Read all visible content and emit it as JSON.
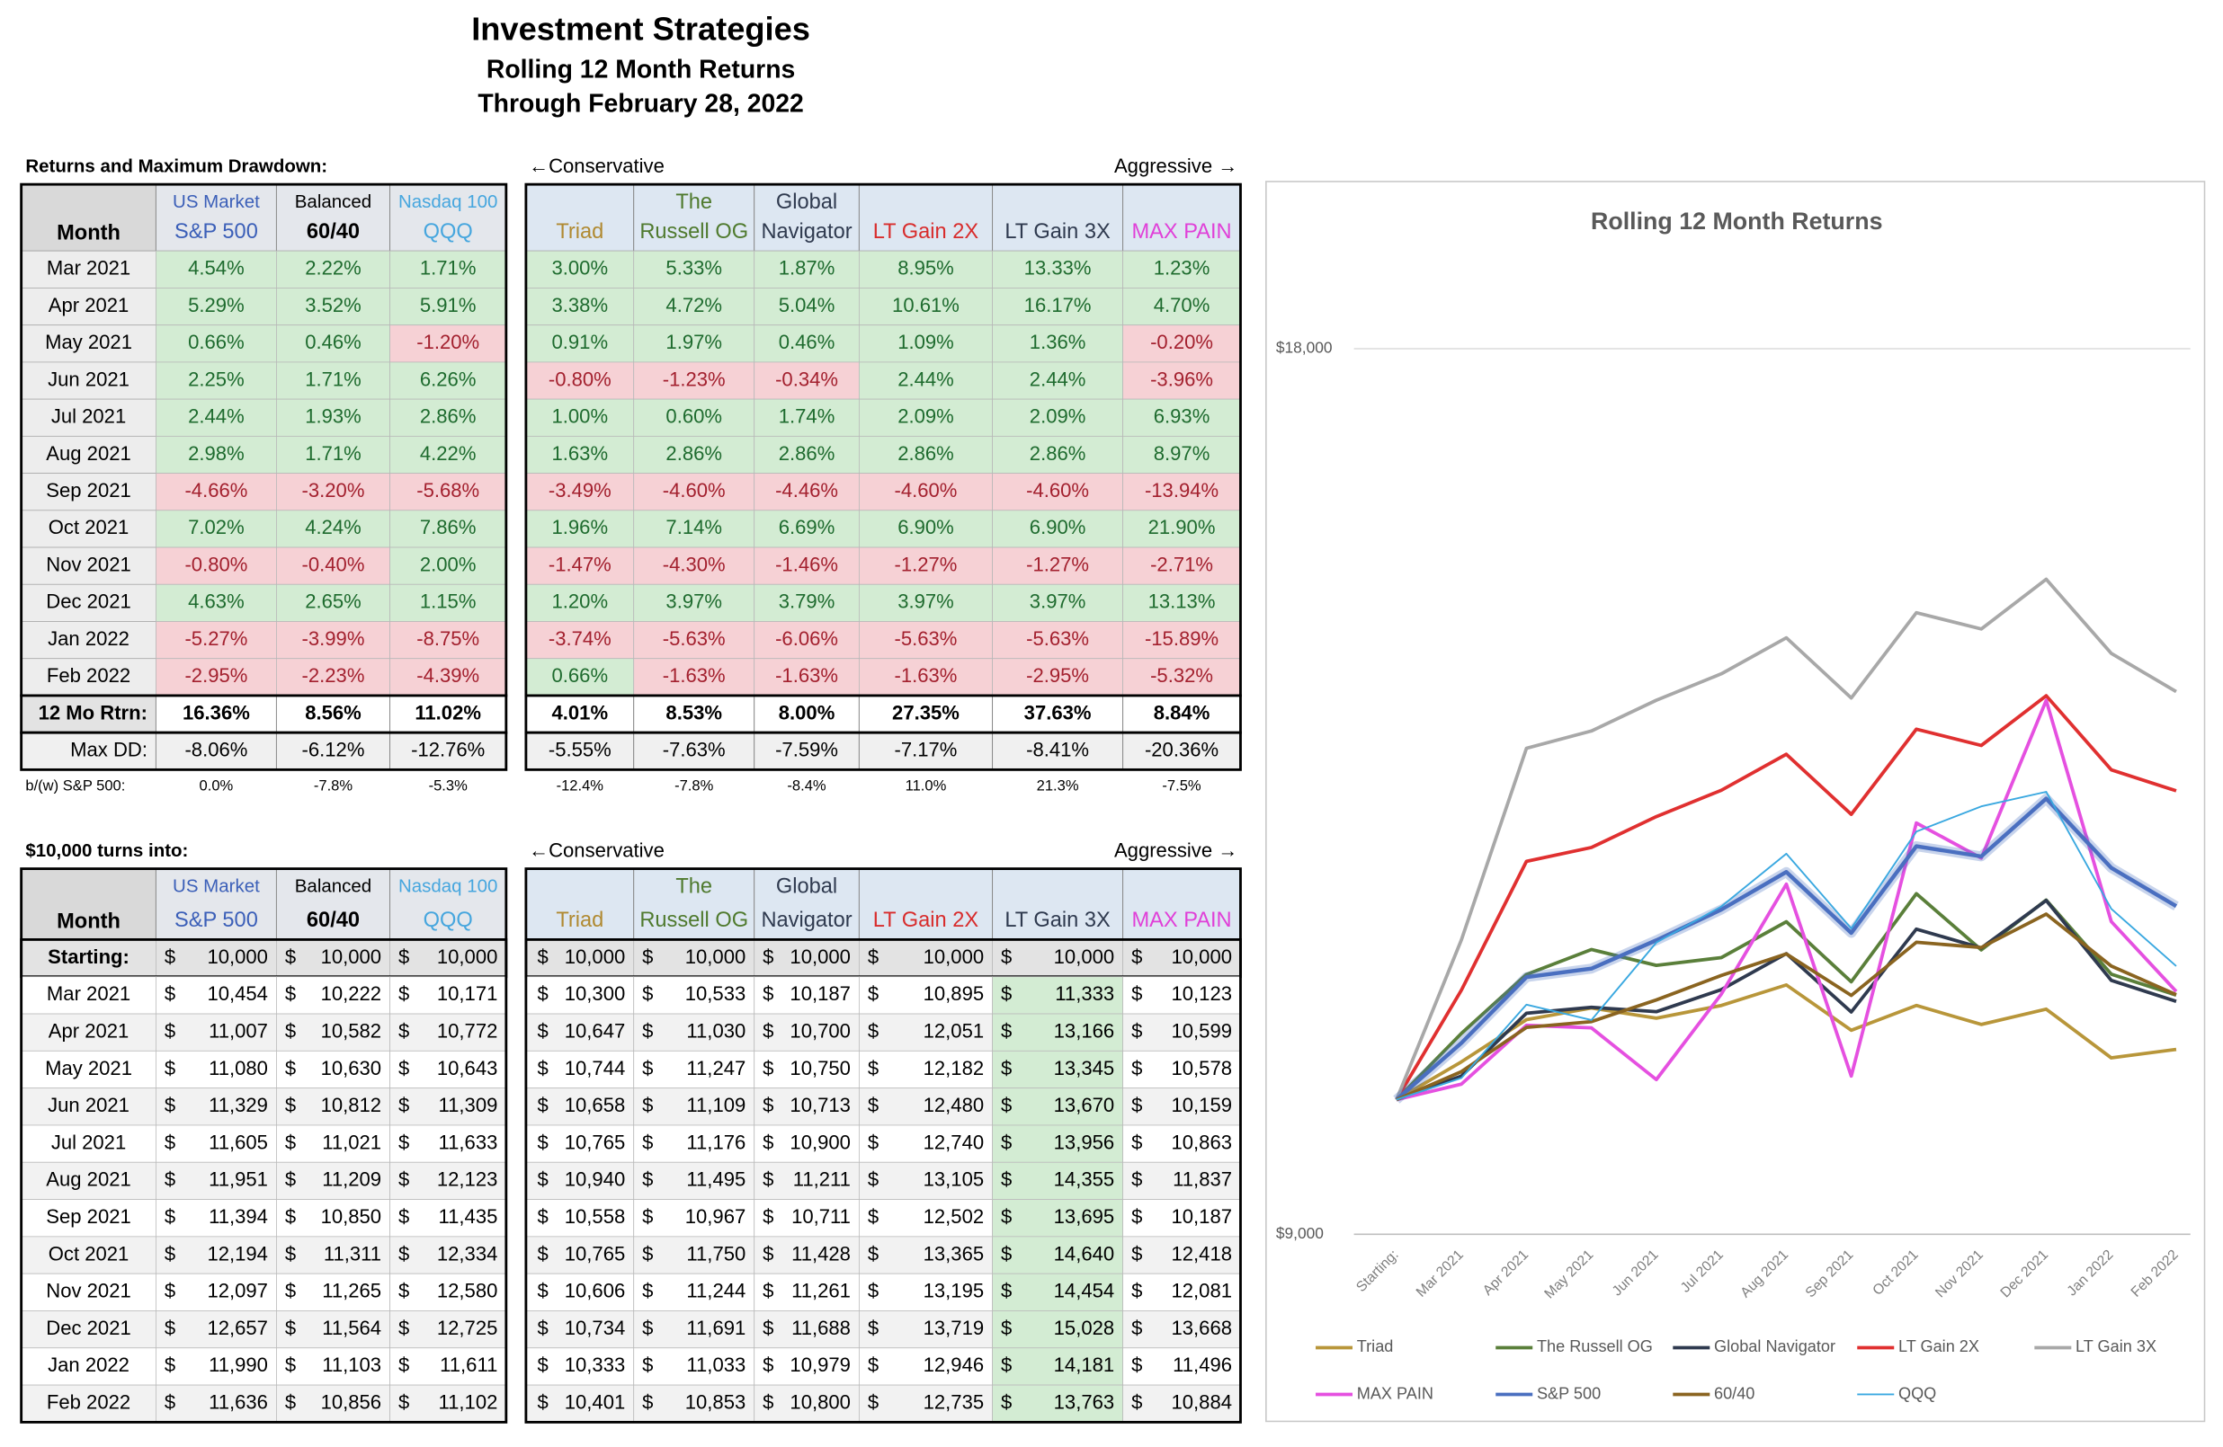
{
  "header": {
    "title": "Investment Strategies",
    "subtitle": "Rolling 12 Month Returns",
    "date": "Through February 28, 2022"
  },
  "columns": [
    {
      "top": "US Market",
      "name": "S&P 500",
      "color": "#3b5fb8"
    },
    {
      "top": "Balanced",
      "name": "60/40",
      "color": "#000000"
    },
    {
      "top": "Nasdaq 100",
      "name": "QQQ",
      "color": "#46a6de"
    },
    {
      "name": "Triad",
      "color": "#b08a32"
    },
    {
      "top": "The",
      "name": "Russell OG",
      "color": "#4f7a2e"
    },
    {
      "top": "Global",
      "name": "Navigator",
      "color": "#2f3a4f"
    },
    {
      "name": "LT Gain 2X",
      "color": "#d82c2c"
    },
    {
      "name": "LT Gain 3X",
      "color": "#2f3a4f"
    },
    {
      "name": "MAX PAIN",
      "color": "#e040d8"
    }
  ],
  "returns": {
    "caption": "Returns and Maximum Drawdown:",
    "left_note": "←Conservative",
    "right_note": "Aggressive →",
    "month_header": "Month",
    "rows": [
      {
        "month": "Mar 2021",
        "values": [
          "4.54%",
          "2.22%",
          "1.71%",
          "3.00%",
          "5.33%",
          "1.87%",
          "8.95%",
          "13.33%",
          "1.23%"
        ]
      },
      {
        "month": "Apr 2021",
        "values": [
          "5.29%",
          "3.52%",
          "5.91%",
          "3.38%",
          "4.72%",
          "5.04%",
          "10.61%",
          "16.17%",
          "4.70%"
        ]
      },
      {
        "month": "May 2021",
        "values": [
          "0.66%",
          "0.46%",
          "-1.20%",
          "0.91%",
          "1.97%",
          "0.46%",
          "1.09%",
          "1.36%",
          "-0.20%"
        ]
      },
      {
        "month": "Jun 2021",
        "values": [
          "2.25%",
          "1.71%",
          "6.26%",
          "-0.80%",
          "-1.23%",
          "-0.34%",
          "2.44%",
          "2.44%",
          "-3.96%"
        ]
      },
      {
        "month": "Jul 2021",
        "values": [
          "2.44%",
          "1.93%",
          "2.86%",
          "1.00%",
          "0.60%",
          "1.74%",
          "2.09%",
          "2.09%",
          "6.93%"
        ]
      },
      {
        "month": "Aug 2021",
        "values": [
          "2.98%",
          "1.71%",
          "4.22%",
          "1.63%",
          "2.86%",
          "2.86%",
          "2.86%",
          "2.86%",
          "8.97%"
        ]
      },
      {
        "month": "Sep 2021",
        "values": [
          "-4.66%",
          "-3.20%",
          "-5.68%",
          "-3.49%",
          "-4.60%",
          "-4.46%",
          "-4.60%",
          "-4.60%",
          "-13.94%"
        ]
      },
      {
        "month": "Oct 2021",
        "values": [
          "7.02%",
          "4.24%",
          "7.86%",
          "1.96%",
          "7.14%",
          "6.69%",
          "6.90%",
          "6.90%",
          "21.90%"
        ]
      },
      {
        "month": "Nov 2021",
        "values": [
          "-0.80%",
          "-0.40%",
          "2.00%",
          "-1.47%",
          "-4.30%",
          "-1.46%",
          "-1.27%",
          "-1.27%",
          "-2.71%"
        ]
      },
      {
        "month": "Dec 2021",
        "values": [
          "4.63%",
          "2.65%",
          "1.15%",
          "1.20%",
          "3.97%",
          "3.79%",
          "3.97%",
          "3.97%",
          "13.13%"
        ]
      },
      {
        "month": "Jan 2022",
        "values": [
          "-5.27%",
          "-3.99%",
          "-8.75%",
          "-3.74%",
          "-5.63%",
          "-6.06%",
          "-5.63%",
          "-5.63%",
          "-15.89%"
        ]
      },
      {
        "month": "Feb 2022",
        "values": [
          "-2.95%",
          "-2.23%",
          "-4.39%",
          "0.66%",
          "-1.63%",
          "-1.63%",
          "-1.63%",
          "-2.95%",
          "-5.32%"
        ]
      }
    ],
    "summary": [
      {
        "label": "12 Mo Rtrn:",
        "values": [
          "16.36%",
          "8.56%",
          "11.02%",
          "4.01%",
          "8.53%",
          "8.00%",
          "27.35%",
          "37.63%",
          "8.84%"
        ]
      },
      {
        "label": "Max DD:",
        "values": [
          "-8.06%",
          "-6.12%",
          "-12.76%",
          "-5.55%",
          "-7.63%",
          "-7.59%",
          "-7.17%",
          "-8.41%",
          "-20.36%"
        ]
      },
      {
        "label": "b/(w) S&P 500:",
        "values": [
          "0.0%",
          "-7.8%",
          "-5.3%",
          "-12.4%",
          "-7.8%",
          "-8.4%",
          "11.0%",
          "21.3%",
          "-7.5%"
        ]
      }
    ]
  },
  "growth": {
    "caption": "$10,000 turns into:",
    "left_note": "←Conservative",
    "right_note": "Aggressive →",
    "month_header": "Month",
    "currency": "$",
    "rows": [
      {
        "month": "Starting:",
        "values": [
          "10,000",
          "10,000",
          "10,000",
          "10,000",
          "10,000",
          "10,000",
          "10,000",
          "10,000",
          "10,000"
        ]
      },
      {
        "month": "Mar 2021",
        "values": [
          "10,454",
          "10,222",
          "10,171",
          "10,300",
          "10,533",
          "10,187",
          "10,895",
          "11,333",
          "10,123"
        ]
      },
      {
        "month": "Apr 2021",
        "values": [
          "11,007",
          "10,582",
          "10,772",
          "10,647",
          "11,030",
          "10,700",
          "12,051",
          "13,166",
          "10,599"
        ]
      },
      {
        "month": "May 2021",
        "values": [
          "11,080",
          "10,630",
          "10,643",
          "10,744",
          "11,247",
          "10,750",
          "12,182",
          "13,345",
          "10,578"
        ]
      },
      {
        "month": "Jun 2021",
        "values": [
          "11,329",
          "10,812",
          "11,309",
          "10,658",
          "11,109",
          "10,713",
          "12,480",
          "13,670",
          "10,159"
        ]
      },
      {
        "month": "Jul 2021",
        "values": [
          "11,605",
          "11,021",
          "11,633",
          "10,765",
          "11,176",
          "10,900",
          "12,740",
          "13,956",
          "10,863"
        ]
      },
      {
        "month": "Aug 2021",
        "values": [
          "11,951",
          "11,209",
          "12,123",
          "10,940",
          "11,495",
          "11,211",
          "13,105",
          "14,355",
          "11,837"
        ]
      },
      {
        "month": "Sep 2021",
        "values": [
          "11,394",
          "10,850",
          "11,435",
          "10,558",
          "10,967",
          "10,711",
          "12,502",
          "13,695",
          "10,187"
        ]
      },
      {
        "month": "Oct 2021",
        "values": [
          "12,194",
          "11,311",
          "12,334",
          "10,765",
          "11,750",
          "11,428",
          "13,365",
          "14,640",
          "12,418"
        ]
      },
      {
        "month": "Nov 2021",
        "values": [
          "12,097",
          "11,265",
          "12,580",
          "10,606",
          "11,244",
          "11,261",
          "13,195",
          "14,454",
          "12,081"
        ]
      },
      {
        "month": "Dec 2021",
        "values": [
          "12,657",
          "11,564",
          "12,725",
          "10,734",
          "11,691",
          "11,688",
          "13,719",
          "15,028",
          "13,668"
        ]
      },
      {
        "month": "Jan 2022",
        "values": [
          "11,990",
          "11,103",
          "11,611",
          "10,333",
          "11,033",
          "10,979",
          "12,946",
          "14,181",
          "11,496"
        ]
      },
      {
        "month": "Feb 2022",
        "values": [
          "11,636",
          "10,856",
          "11,102",
          "10,401",
          "10,853",
          "10,800",
          "12,735",
          "13,763",
          "10,884"
        ]
      }
    ]
  },
  "chart_data": {
    "type": "line",
    "title": "Rolling 12 Month Returns",
    "yscale": "log",
    "categories": [
      "Starting:",
      "Mar 2021",
      "Apr 2021",
      "May 2021",
      "Jun 2021",
      "Jul 2021",
      "Aug 2021",
      "Sep 2021",
      "Oct 2021",
      "Nov 2021",
      "Dec 2021",
      "Jan 2022",
      "Feb 2022"
    ],
    "ylim": [
      9000,
      18000
    ],
    "yticks": [
      {
        "value": 9000,
        "label": "$9,000"
      },
      {
        "value": 18000,
        "label": "$18,000"
      }
    ],
    "grid": true,
    "legend": "bottom",
    "series": [
      {
        "name": "Triad",
        "color": "#b8963a",
        "values": [
          10000,
          10300,
          10647,
          10744,
          10658,
          10765,
          10940,
          10558,
          10765,
          10606,
          10734,
          10333,
          10401
        ]
      },
      {
        "name": "The Russell OG",
        "color": "#5a7f3a",
        "values": [
          10000,
          10533,
          11030,
          11247,
          11109,
          11176,
          11495,
          10967,
          11750,
          11244,
          11691,
          11033,
          10853
        ]
      },
      {
        "name": "Global Navigator",
        "color": "#2f3a4f",
        "values": [
          10000,
          10187,
          10700,
          10750,
          10713,
          10900,
          11211,
          10711,
          11428,
          11261,
          11688,
          10979,
          10800
        ]
      },
      {
        "name": "LT Gain 2X",
        "color": "#e03030",
        "values": [
          10000,
          10895,
          12051,
          12182,
          12480,
          12740,
          13105,
          12502,
          13365,
          13195,
          13719,
          12946,
          12735
        ]
      },
      {
        "name": "LT Gain 3X",
        "color": "#a8a8a8",
        "values": [
          10000,
          11333,
          13166,
          13345,
          13670,
          13956,
          14355,
          13695,
          14640,
          14454,
          15028,
          14181,
          13763
        ]
      },
      {
        "name": "MAX PAIN",
        "color": "#e550e0",
        "values": [
          10000,
          10123,
          10599,
          10578,
          10159,
          10863,
          11837,
          10187,
          12418,
          12081,
          13668,
          11496,
          10884
        ]
      },
      {
        "name": "S&P 500",
        "color": "#4a6fc0",
        "values": [
          10000,
          10454,
          11007,
          11080,
          11329,
          11605,
          11951,
          11394,
          12194,
          12097,
          12657,
          11990,
          11636
        ]
      },
      {
        "name": "60/40",
        "color": "#8a6420",
        "values": [
          10000,
          10222,
          10582,
          10630,
          10812,
          11021,
          11209,
          10850,
          11311,
          11265,
          11564,
          11103,
          10856
        ]
      },
      {
        "name": "QQQ",
        "color": "#3aa8e0",
        "values": [
          10000,
          10171,
          10772,
          10643,
          11309,
          11633,
          12123,
          11435,
          12334,
          12580,
          12725,
          11611,
          11102
        ]
      }
    ]
  }
}
